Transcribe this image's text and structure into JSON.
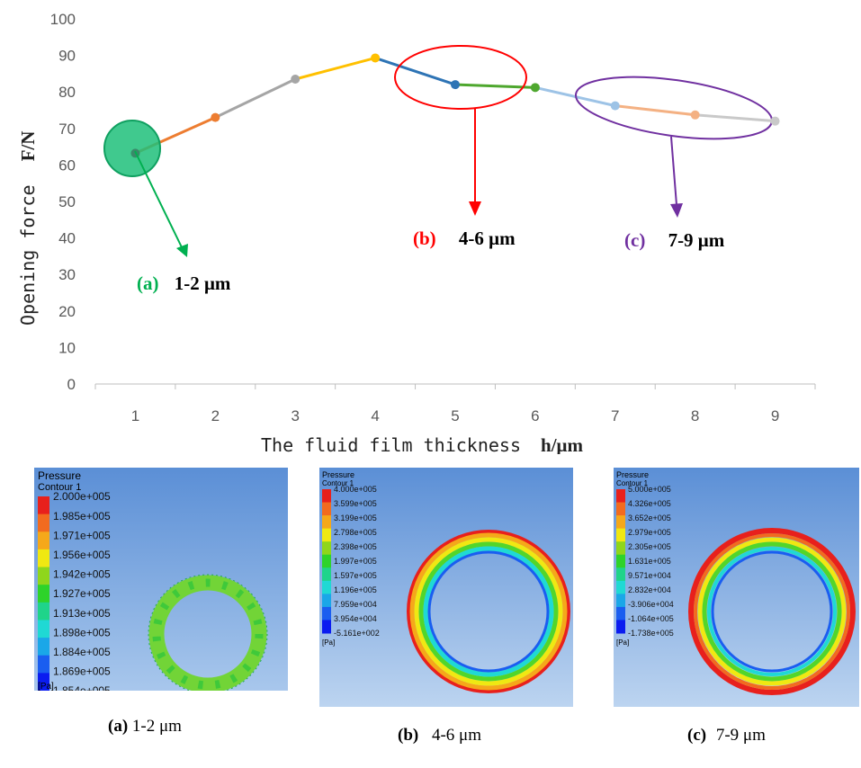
{
  "chart_data": {
    "type": "line",
    "x": [
      1,
      2,
      3,
      4,
      5,
      6,
      7,
      8,
      9
    ],
    "values": [
      63.2,
      73,
      83.5,
      89.3,
      82,
      81.2,
      76.2,
      73.7,
      72
    ],
    "segment_colors": [
      "#ed7d31",
      "#a5a5a5",
      "#ffc000",
      "#2e74b5",
      "#4ea72e",
      "#9dc3e6",
      "#f4b183",
      "#c9c9c9"
    ],
    "point_colors": [
      "#3a8a6a",
      "#ed7d31",
      "#a5a5a5",
      "#ffc000",
      "#2e74b5",
      "#4ea72e",
      "#9dc3e6",
      "#f4b183",
      "#c9c9c9"
    ],
    "ylim": [
      0,
      100
    ],
    "yticks": [
      "0",
      "10",
      "20",
      "30",
      "40",
      "50",
      "60",
      "70",
      "80",
      "90",
      "100"
    ],
    "xticks": [
      "1",
      "2",
      "3",
      "4",
      "5",
      "6",
      "7",
      "8",
      "9"
    ],
    "xlabel": "The fluid film thickness",
    "xlabel_unit": "h/μm",
    "ylabel": "Opening force",
    "ylabel_unit": "F/N",
    "grid": false,
    "annotations": [
      {
        "letter": "(a)",
        "text": "1-2 μm",
        "color": "#00b050",
        "x": 1
      },
      {
        "letter": "(b)",
        "text": "4-6 μm",
        "color": "#ff0000",
        "x": 5.2
      },
      {
        "letter": "(c)",
        "text": "7-9 μm",
        "color": "#7030a0",
        "x": 7.8
      }
    ]
  },
  "panels": [
    {
      "title": "Pressure",
      "subtitle": "Contour 1",
      "unit": "[Pa]",
      "labels": [
        "2.000e+005",
        "1.985e+005",
        "1.971e+005",
        "1.956e+005",
        "1.942e+005",
        "1.927e+005",
        "1.913e+005",
        "1.898e+005",
        "1.884e+005",
        "1.869e+005",
        "1.854e+005"
      ],
      "caption_letter": "(a)",
      "caption_text": "1-2 μm"
    },
    {
      "title": "Pressure",
      "subtitle": "Contour 1",
      "unit": "[Pa]",
      "labels": [
        "4.000e+005",
        "3.599e+005",
        "3.199e+005",
        "2.798e+005",
        "2.398e+005",
        "1.997e+005",
        "1.597e+005",
        "1.196e+005",
        "7.959e+004",
        "3.954e+004",
        "-5.161e+002"
      ],
      "caption_letter": "(b)",
      "caption_text": "4-6 μm"
    },
    {
      "title": "Pressure",
      "subtitle": "Contour 1",
      "unit": "[Pa]",
      "labels": [
        "5.000e+005",
        "4.326e+005",
        "3.652e+005",
        "2.979e+005",
        "2.305e+005",
        "1.631e+005",
        "9.571e+004",
        "2.832e+004",
        "-3.906e+004",
        "-1.064e+005",
        "-1.738e+005"
      ],
      "caption_letter": "(c)",
      "caption_text": "7-9 μm"
    }
  ],
  "legend_colors": [
    "#e8201c",
    "#f26b1f",
    "#f5a81a",
    "#f0e812",
    "#8fd61c",
    "#2ed32a",
    "#1fd48a",
    "#1fd9d4",
    "#1aa7e8",
    "#1a5ef0",
    "#0a1cf0"
  ]
}
